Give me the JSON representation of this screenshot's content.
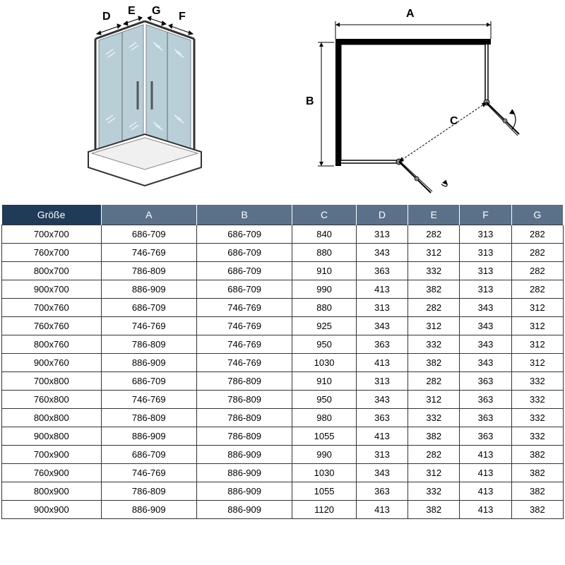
{
  "diagrams": {
    "left": {
      "labels": {
        "D": "D",
        "E": "E",
        "G": "G",
        "F": "F"
      }
    },
    "right": {
      "labels": {
        "A": "A",
        "B": "B",
        "C": "C"
      }
    }
  },
  "table": {
    "header_bg_first": "#1f3b57",
    "header_bg_rest": "#5b7189",
    "header_text_color": "#ffffff",
    "border_color": "#333333",
    "columns": [
      "Größe",
      "A",
      "B",
      "C",
      "D",
      "E",
      "F",
      "G"
    ],
    "rows": [
      [
        "700x700",
        "686-709",
        "686-709",
        "840",
        "313",
        "282",
        "313",
        "282"
      ],
      [
        "760x700",
        "746-769",
        "686-709",
        "880",
        "343",
        "312",
        "313",
        "282"
      ],
      [
        "800x700",
        "786-809",
        "686-709",
        "910",
        "363",
        "332",
        "313",
        "282"
      ],
      [
        "900x700",
        "886-909",
        "686-709",
        "990",
        "413",
        "382",
        "313",
        "282"
      ],
      [
        "700x760",
        "686-709",
        "746-769",
        "880",
        "313",
        "282",
        "343",
        "312"
      ],
      [
        "760x760",
        "746-769",
        "746-769",
        "925",
        "343",
        "312",
        "343",
        "312"
      ],
      [
        "800x760",
        "786-809",
        "746-769",
        "950",
        "363",
        "332",
        "343",
        "312"
      ],
      [
        "900x760",
        "886-909",
        "746-769",
        "1030",
        "413",
        "382",
        "343",
        "312"
      ],
      [
        "700x800",
        "686-709",
        "786-809",
        "910",
        "313",
        "282",
        "363",
        "332"
      ],
      [
        "760x800",
        "746-769",
        "786-809",
        "950",
        "343",
        "312",
        "363",
        "332"
      ],
      [
        "800x800",
        "786-809",
        "786-809",
        "980",
        "363",
        "332",
        "363",
        "332"
      ],
      [
        "900x800",
        "886-909",
        "786-809",
        "1055",
        "413",
        "382",
        "363",
        "332"
      ],
      [
        "700x900",
        "686-709",
        "886-909",
        "990",
        "313",
        "282",
        "413",
        "382"
      ],
      [
        "760x900",
        "746-769",
        "886-909",
        "1030",
        "343",
        "312",
        "413",
        "382"
      ],
      [
        "800x900",
        "786-809",
        "886-909",
        "1055",
        "363",
        "332",
        "413",
        "382"
      ],
      [
        "900x900",
        "886-909",
        "886-909",
        "1120",
        "413",
        "382",
        "413",
        "382"
      ]
    ]
  }
}
